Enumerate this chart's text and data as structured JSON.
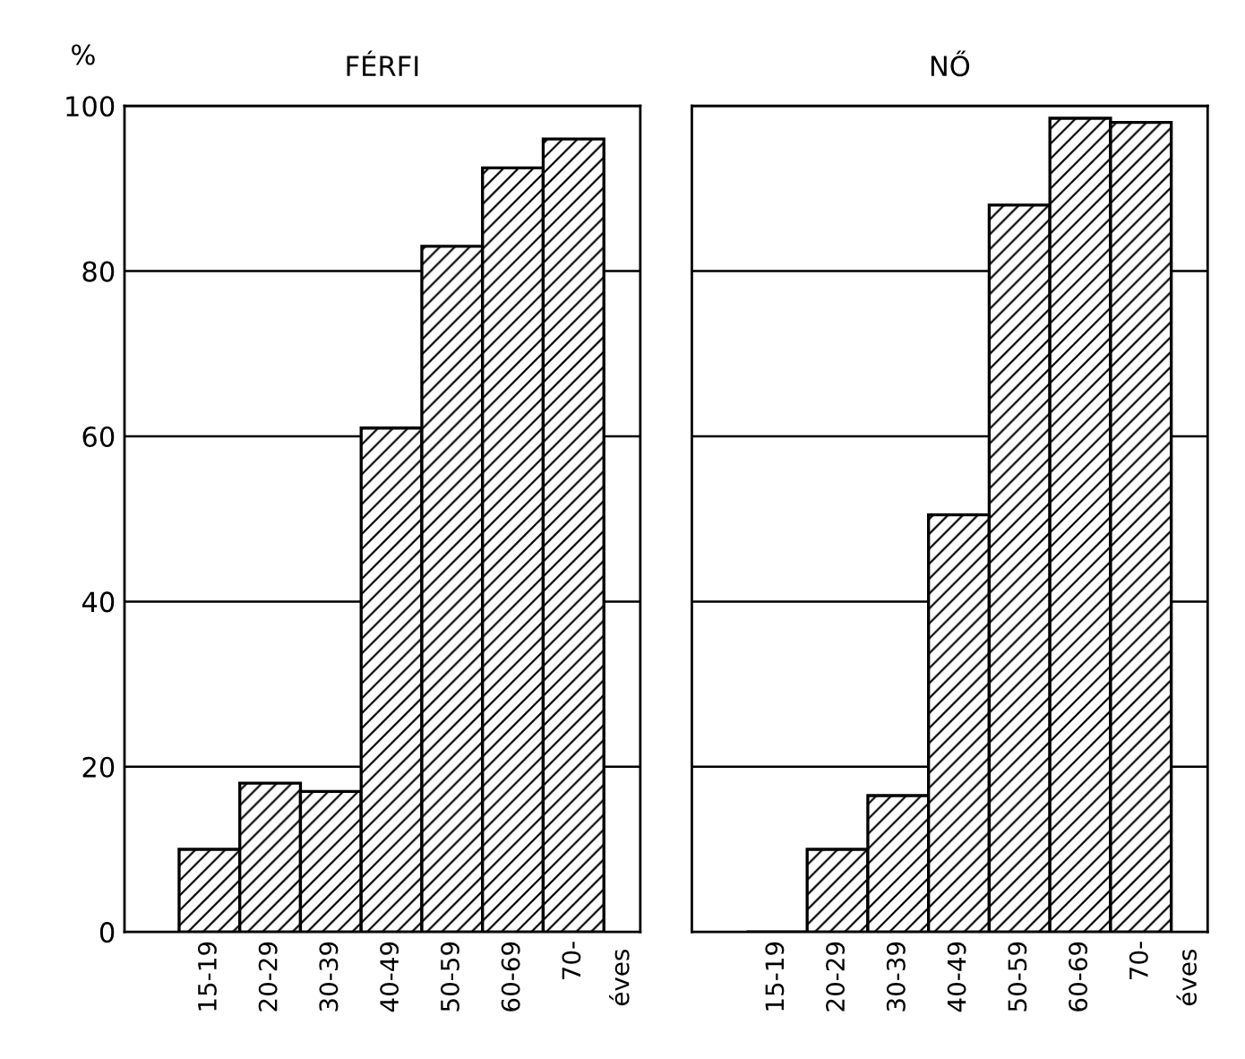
{
  "chart_data": [
    {
      "type": "bar",
      "title": "FÉRFI",
      "ylabel": "%",
      "annotations": [
        "éves"
      ],
      "categories": [
        "15-19",
        "20-29",
        "30-39",
        "40-49",
        "50-59",
        "60-69",
        "70-"
      ],
      "series": [
        {
          "color": "#000000",
          "values": [
            10,
            18,
            17,
            61,
            83,
            92.5,
            96
          ]
        }
      ],
      "ylim": [
        0,
        100
      ],
      "yticks": [
        0,
        20,
        40,
        60,
        80,
        100
      ],
      "grid": "y"
    },
    {
      "type": "bar",
      "title": "NŐ",
      "annotations": [
        "éves"
      ],
      "categories": [
        "15-19",
        "20-29",
        "30-39",
        "40-49",
        "50-59",
        "60-69",
        "70-"
      ],
      "series": [
        {
          "color": "#000000",
          "values": [
            0,
            10,
            16.5,
            50.5,
            88,
            98.5,
            98
          ]
        }
      ],
      "ylim": [
        0,
        100
      ],
      "yticks": [
        0,
        20,
        40,
        60,
        80,
        100
      ],
      "grid": "y",
      "tick_labels": "x"
    }
  ]
}
